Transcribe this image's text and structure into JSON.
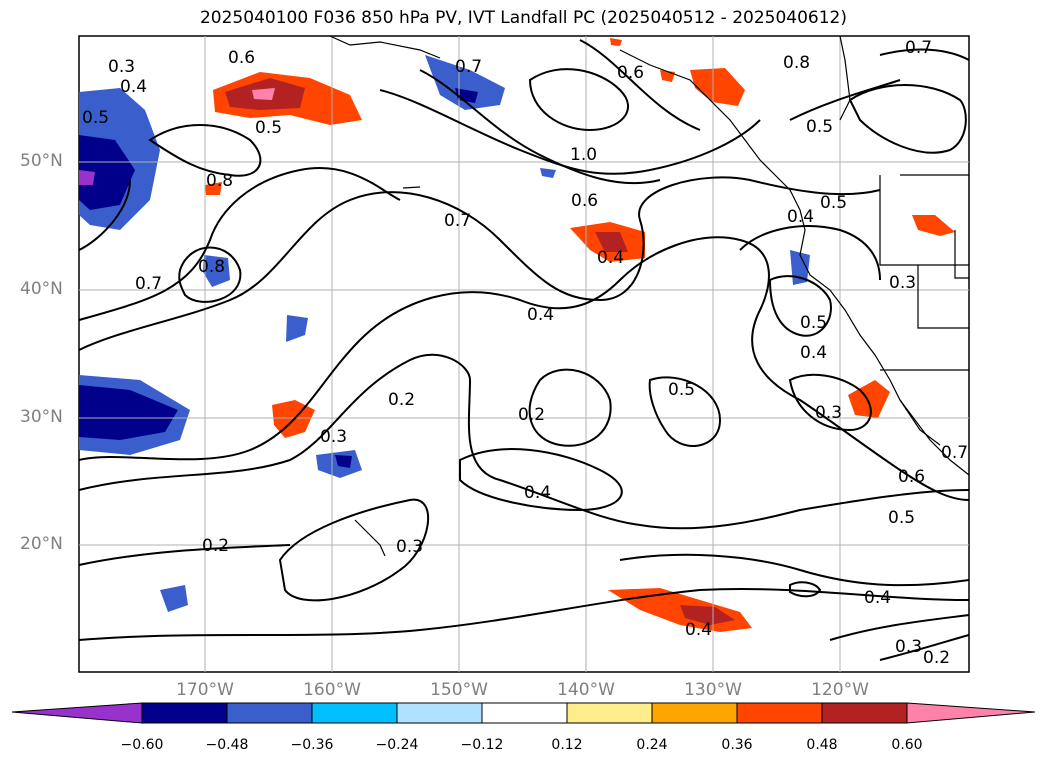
{
  "title": "2025040100 F036 850 hPa PV, IVT Landfall PC (2025040512 - 2025040612)",
  "lat_labels": [
    "50°N",
    "40°N",
    "30°N",
    "20°N"
  ],
  "lon_labels": [
    "170°W",
    "160°W",
    "150°W",
    "140°W",
    "130°W",
    "120°W"
  ],
  "contour_labels": [
    "0.2",
    "0.3",
    "0.4",
    "0.5",
    "0.6",
    "0.7",
    "0.8",
    "0.8",
    "0.6",
    "1.0",
    "0.6",
    "0.7",
    "0.8",
    "0.5",
    "0.8",
    "0.7",
    "0.8",
    "0.5",
    "0.4",
    "0.7",
    "0.4",
    "0.5",
    "0.4",
    "0.3",
    "0.3",
    "0.2",
    "0.3",
    "0.2",
    "0.4",
    "0.5",
    "0.6",
    "0.5",
    "0.3",
    "0.2",
    "0.4",
    "0.3",
    "0.2",
    "0.4",
    "0.3",
    "0.6",
    "0.7"
  ],
  "colorbar": {
    "ticks": [
      "−0.60",
      "−0.48",
      "−0.36",
      "−0.24",
      "−0.12",
      "0.12",
      "0.24",
      "0.36",
      "0.48",
      "0.60"
    ],
    "colors": [
      "#9932cc",
      "#00008b",
      "#3a5fcd",
      "#00bfff",
      "#b0e2ff",
      "#ffffff",
      "#ffec8b",
      "#ffa500",
      "#ff4500",
      "#b22222",
      "#ff82ab"
    ]
  }
}
